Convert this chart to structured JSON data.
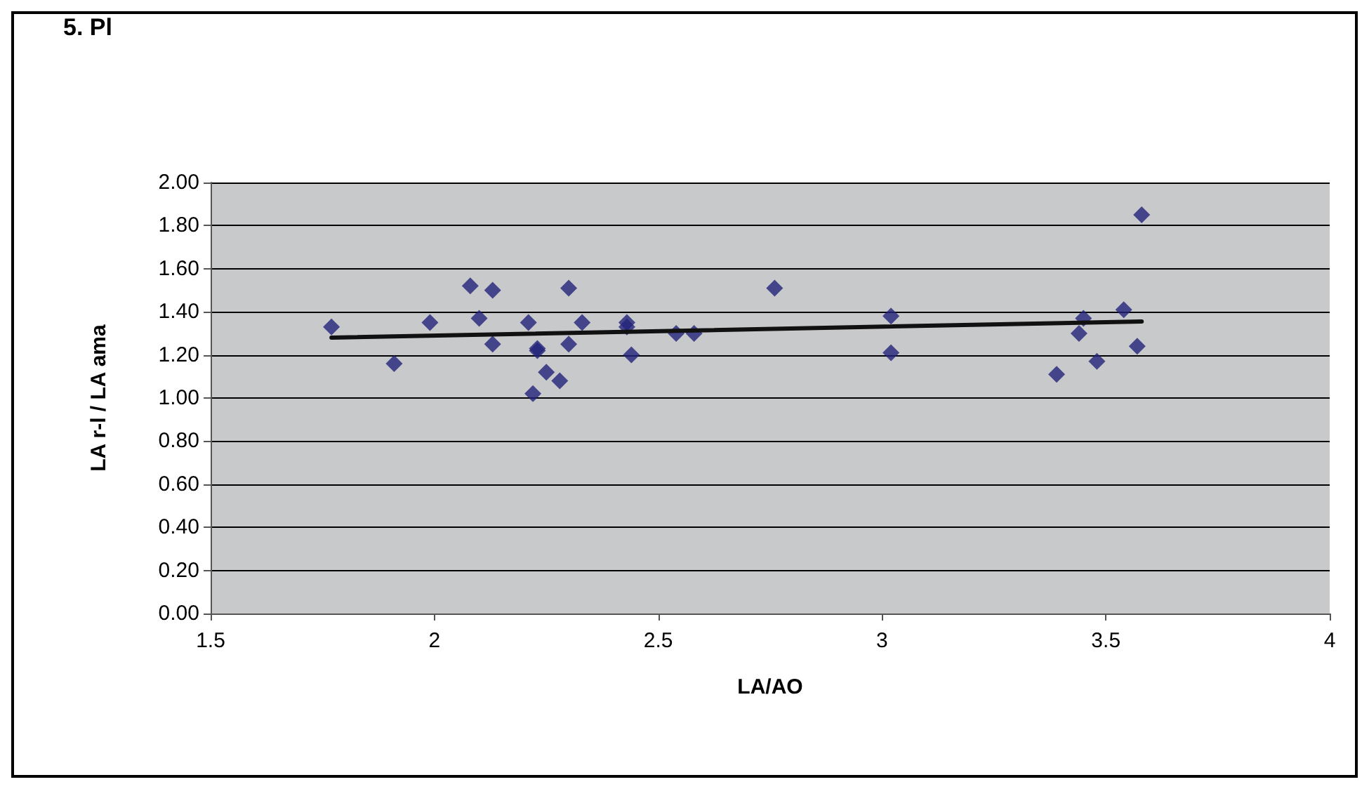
{
  "chart_data": {
    "type": "scatter",
    "title": "5. Pl",
    "xlabel": "LA/AO",
    "ylabel": "LA r-l / LA ama",
    "xlim": [
      1.5,
      4
    ],
    "xticks": [
      1.5,
      2,
      2.5,
      3,
      3.5,
      4
    ],
    "ylim": [
      0,
      2
    ],
    "yticks": [
      {
        "value": 0,
        "label": "0.00"
      },
      {
        "value": 0.2,
        "label": "0.20"
      },
      {
        "value": 0.4,
        "label": "0.40"
      },
      {
        "value": 0.6,
        "label": "0.60"
      },
      {
        "value": 0.8,
        "label": "0.80"
      },
      {
        "value": 1,
        "label": "1.00"
      },
      {
        "value": 1.2,
        "label": "1.20"
      },
      {
        "value": 1.4,
        "label": "1.40"
      },
      {
        "value": 1.6,
        "label": "1.60"
      },
      {
        "value": 1.8,
        "label": "1.80"
      },
      {
        "value": 2,
        "label": "2.00"
      }
    ],
    "grid": "y",
    "marker": "diamond",
    "series": [
      {
        "color": "#23237a",
        "x": [
          1.77,
          1.91,
          1.99,
          2.08,
          2.1,
          2.13,
          2.13,
          2.21,
          2.22,
          2.23,
          2.23,
          2.25,
          2.28,
          2.3,
          2.3,
          2.33,
          2.43,
          2.43,
          2.44,
          2.54,
          2.58,
          2.76,
          3.02,
          3.02,
          3.39,
          3.44,
          3.45,
          3.48,
          3.54,
          3.57,
          3.58
        ],
        "values": [
          1.33,
          1.16,
          1.35,
          1.52,
          1.37,
          1.5,
          1.25,
          1.35,
          1.02,
          1.22,
          1.23,
          1.12,
          1.08,
          1.51,
          1.25,
          1.35,
          1.35,
          1.33,
          1.2,
          1.3,
          1.3,
          1.51,
          1.38,
          1.21,
          1.11,
          1.3,
          1.37,
          1.17,
          1.41,
          1.24,
          1.85
        ]
      },
      {
        "type": "line",
        "color": "#111111",
        "x": [
          1.77,
          3.58
        ],
        "values": [
          1.28,
          1.355
        ],
        "marker": "none",
        "line_style": "solid"
      }
    ]
  }
}
